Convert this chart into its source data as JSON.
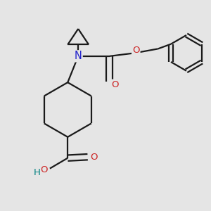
{
  "bg_color": "#e5e5e5",
  "bond_color": "#1a1a1a",
  "N_color": "#2222cc",
  "O_color": "#cc2222",
  "H_color": "#008080",
  "line_width": 1.6,
  "font_size": 9.5,
  "xlim": [
    0,
    10
  ],
  "ylim": [
    0,
    10
  ]
}
